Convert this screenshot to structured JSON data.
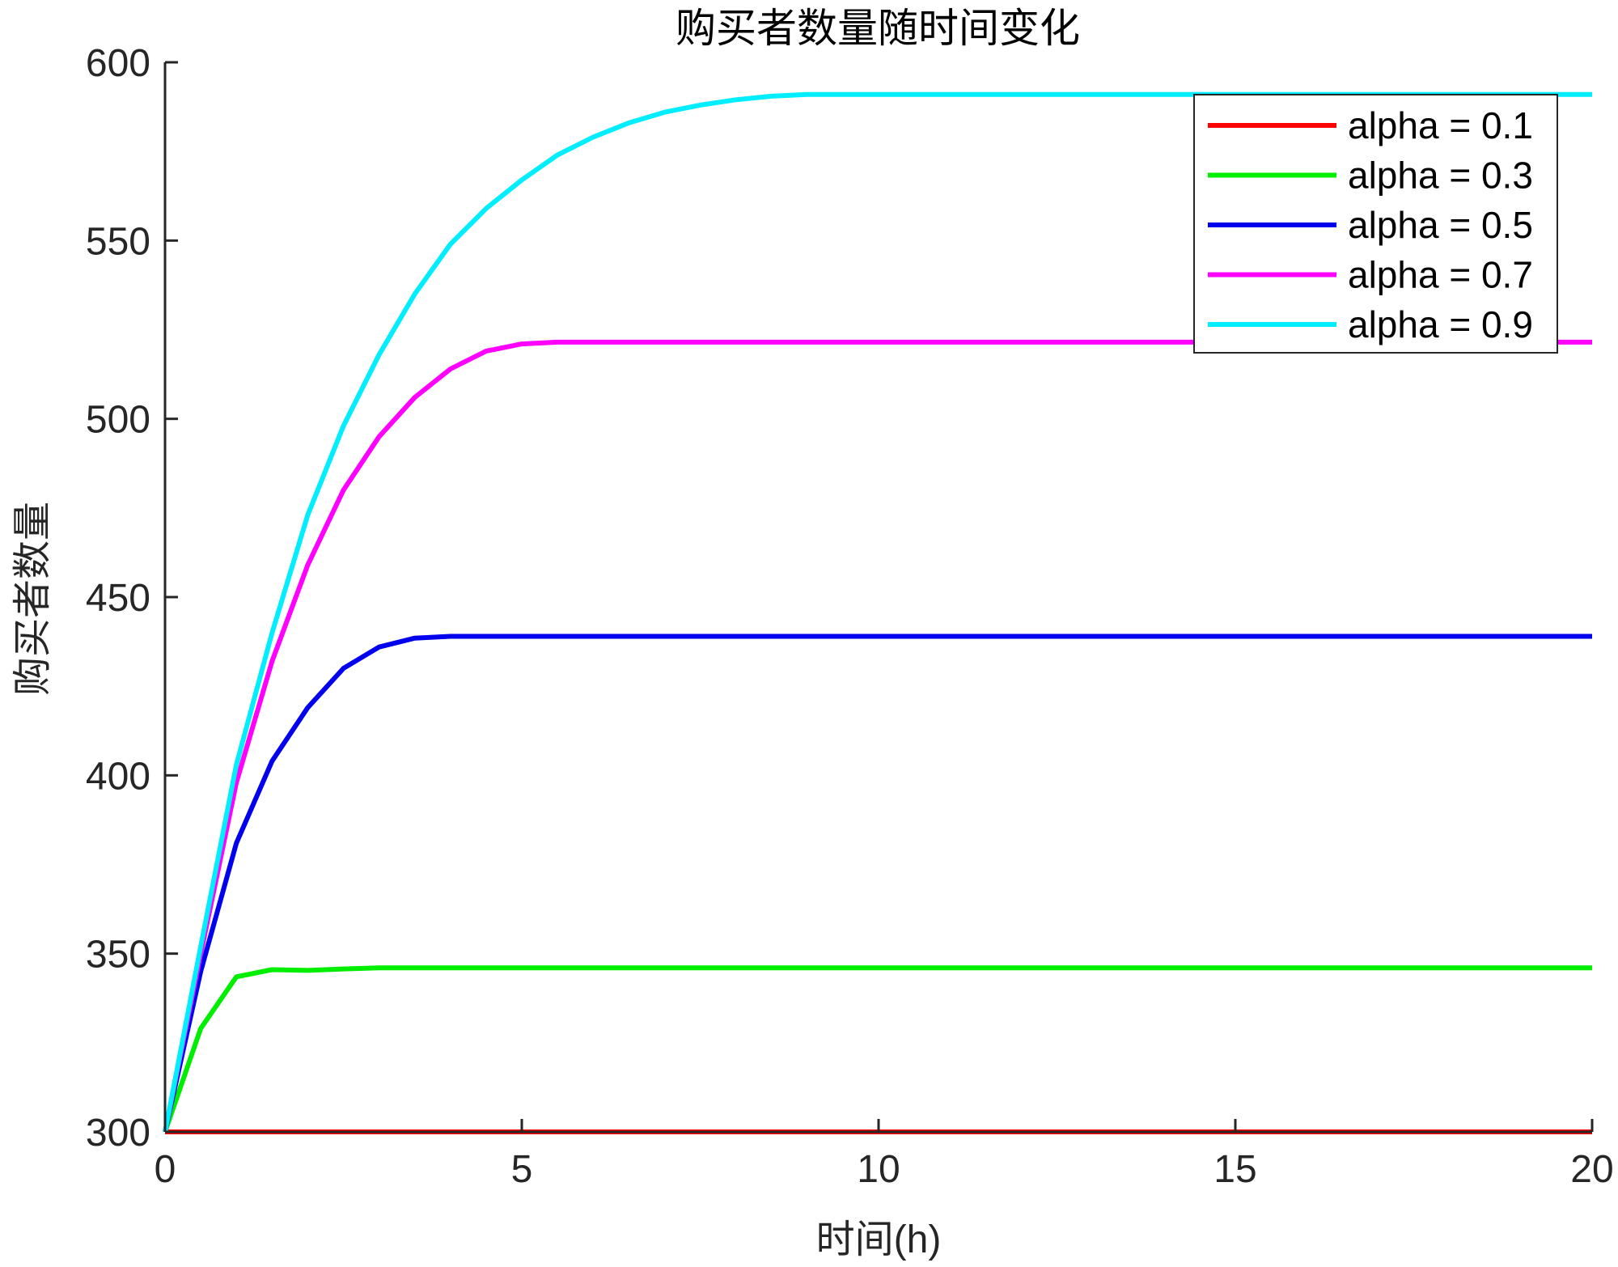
{
  "chart_data": {
    "type": "line",
    "title": "购买者数量随时间变化",
    "xlabel": "时间(h)",
    "ylabel": "购买者数量",
    "xlim": [
      0,
      20
    ],
    "ylim": [
      300,
      600
    ],
    "xticks": [
      "0",
      "5",
      "10",
      "15",
      "20"
    ],
    "yticks": [
      "300",
      "350",
      "400",
      "450",
      "500",
      "550",
      "600"
    ],
    "grid": false,
    "legend_position": "top-right",
    "x_step": 0.5,
    "series": [
      {
        "name": "alpha = 0.1",
        "color": "#ff0000",
        "values": [
          300,
          300,
          300,
          300,
          300,
          300,
          300,
          300,
          300,
          300,
          300,
          300,
          300,
          300,
          300,
          300,
          300,
          300,
          300,
          300,
          300,
          300,
          300,
          300,
          300,
          300,
          300,
          300,
          300,
          300,
          300,
          300,
          300,
          300,
          300,
          300,
          300,
          300,
          300,
          300,
          300
        ]
      },
      {
        "name": "alpha = 0.3",
        "color": "#00ee00",
        "values": [
          300,
          329,
          343.5,
          345.5,
          345.3,
          345.7,
          346,
          346,
          346,
          346,
          346,
          346,
          346,
          346,
          346,
          346,
          346,
          346,
          346,
          346,
          346,
          346,
          346,
          346,
          346,
          346,
          346,
          346,
          346,
          346,
          346,
          346,
          346,
          346,
          346,
          346,
          346,
          346,
          346,
          346,
          346
        ]
      },
      {
        "name": "alpha = 0.5",
        "color": "#0000ee",
        "values": [
          300,
          345,
          381,
          404,
          419,
          430,
          436,
          438.5,
          439,
          439,
          439,
          439,
          439,
          439,
          439,
          439,
          439,
          439,
          439,
          439,
          439,
          439,
          439,
          439,
          439,
          439,
          439,
          439,
          439,
          439,
          439,
          439,
          439,
          439,
          439,
          439,
          439,
          439,
          439,
          439,
          439
        ]
      },
      {
        "name": "alpha = 0.7",
        "color": "#ff00ff",
        "values": [
          300,
          350,
          398,
          432,
          459,
          480,
          495,
          506,
          514,
          519,
          521,
          521.5,
          521.5,
          521.5,
          521.5,
          521.5,
          521.5,
          521.5,
          521.5,
          521.5,
          521.5,
          521.5,
          521.5,
          521.5,
          521.5,
          521.5,
          521.5,
          521.5,
          521.5,
          521.5,
          521.5,
          521.5,
          521.5,
          521.5,
          521.5,
          521.5,
          521.5,
          521.5,
          521.5,
          521.5,
          521.5
        ]
      },
      {
        "name": "alpha = 0.9",
        "color": "#00eeff",
        "values": [
          300,
          352,
          403,
          440,
          473,
          498,
          518,
          535,
          549,
          559,
          567,
          574,
          579,
          583,
          586,
          588,
          589.5,
          590.5,
          591,
          591,
          591,
          591,
          591,
          591,
          591,
          591,
          591,
          591,
          591,
          591,
          591,
          591,
          591,
          591,
          591,
          591,
          591,
          591,
          591,
          591,
          591
        ]
      }
    ]
  }
}
